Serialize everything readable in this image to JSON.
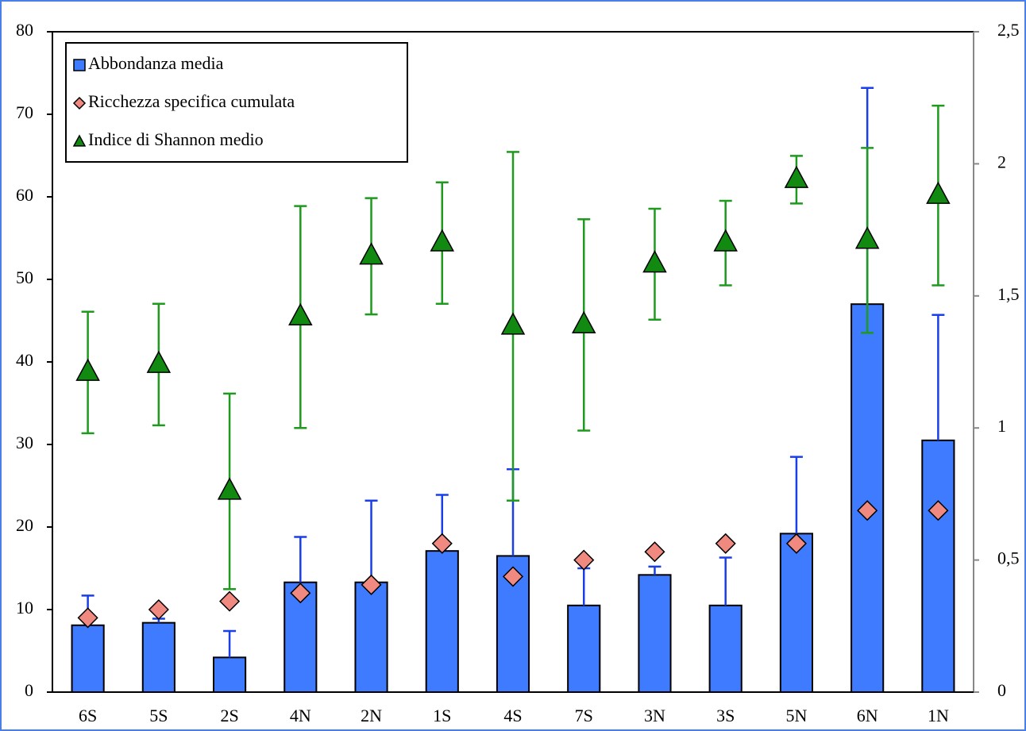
{
  "chart_data": {
    "type": "bar",
    "categories": [
      "6S",
      "5S",
      "2S",
      "4N",
      "2N",
      "1S",
      "4S",
      "7S",
      "3N",
      "3S",
      "5N",
      "6N",
      "1N"
    ],
    "series": [
      {
        "name": "Abbondanza media",
        "type": "bar",
        "color": "#3f7bff",
        "error_color": "#1a3ee8",
        "axis": "y",
        "values": [
          8.1,
          8.4,
          4.2,
          13.3,
          13.3,
          17.1,
          16.5,
          10.5,
          14.2,
          10.5,
          19.2,
          47.0,
          30.5
        ],
        "errors": [
          3.6,
          0.5,
          3.2,
          5.5,
          9.9,
          6.8,
          10.5,
          4.5,
          1.0,
          5.8,
          9.3,
          26.2,
          15.2
        ]
      },
      {
        "name": "Ricchezza specifica cumulata",
        "type": "scatter",
        "marker": "diamond",
        "color": "#f08a80",
        "axis": "y",
        "values": [
          9,
          10,
          11,
          12,
          13,
          18,
          14,
          16,
          17,
          18,
          18,
          22,
          22
        ]
      },
      {
        "name": "Indice di Shannon medio",
        "type": "scatter",
        "marker": "triangle",
        "color": "#128a12",
        "error_color": "#1e9a1e",
        "axis": "y2",
        "values": [
          1.21,
          1.24,
          0.76,
          1.42,
          1.65,
          1.7,
          1.385,
          1.39,
          1.62,
          1.7,
          1.94,
          1.71,
          1.88
        ],
        "errors": [
          0.23,
          0.23,
          0.37,
          0.42,
          0.22,
          0.23,
          0.66,
          0.4,
          0.21,
          0.16,
          0.09,
          0.35,
          0.34
        ]
      }
    ],
    "ylim": [
      0,
      80
    ],
    "yticks": [
      0,
      10,
      20,
      30,
      40,
      50,
      60,
      70,
      80
    ],
    "y2lim": [
      0,
      2.5
    ],
    "y2ticks": [
      0,
      {
        "value": 0.5,
        "label": "0,5"
      },
      1,
      {
        "value": 1.5,
        "label": "1,5"
      },
      2,
      {
        "value": 2.5,
        "label": "2,5"
      }
    ],
    "grid": false,
    "legend": "upper left"
  }
}
